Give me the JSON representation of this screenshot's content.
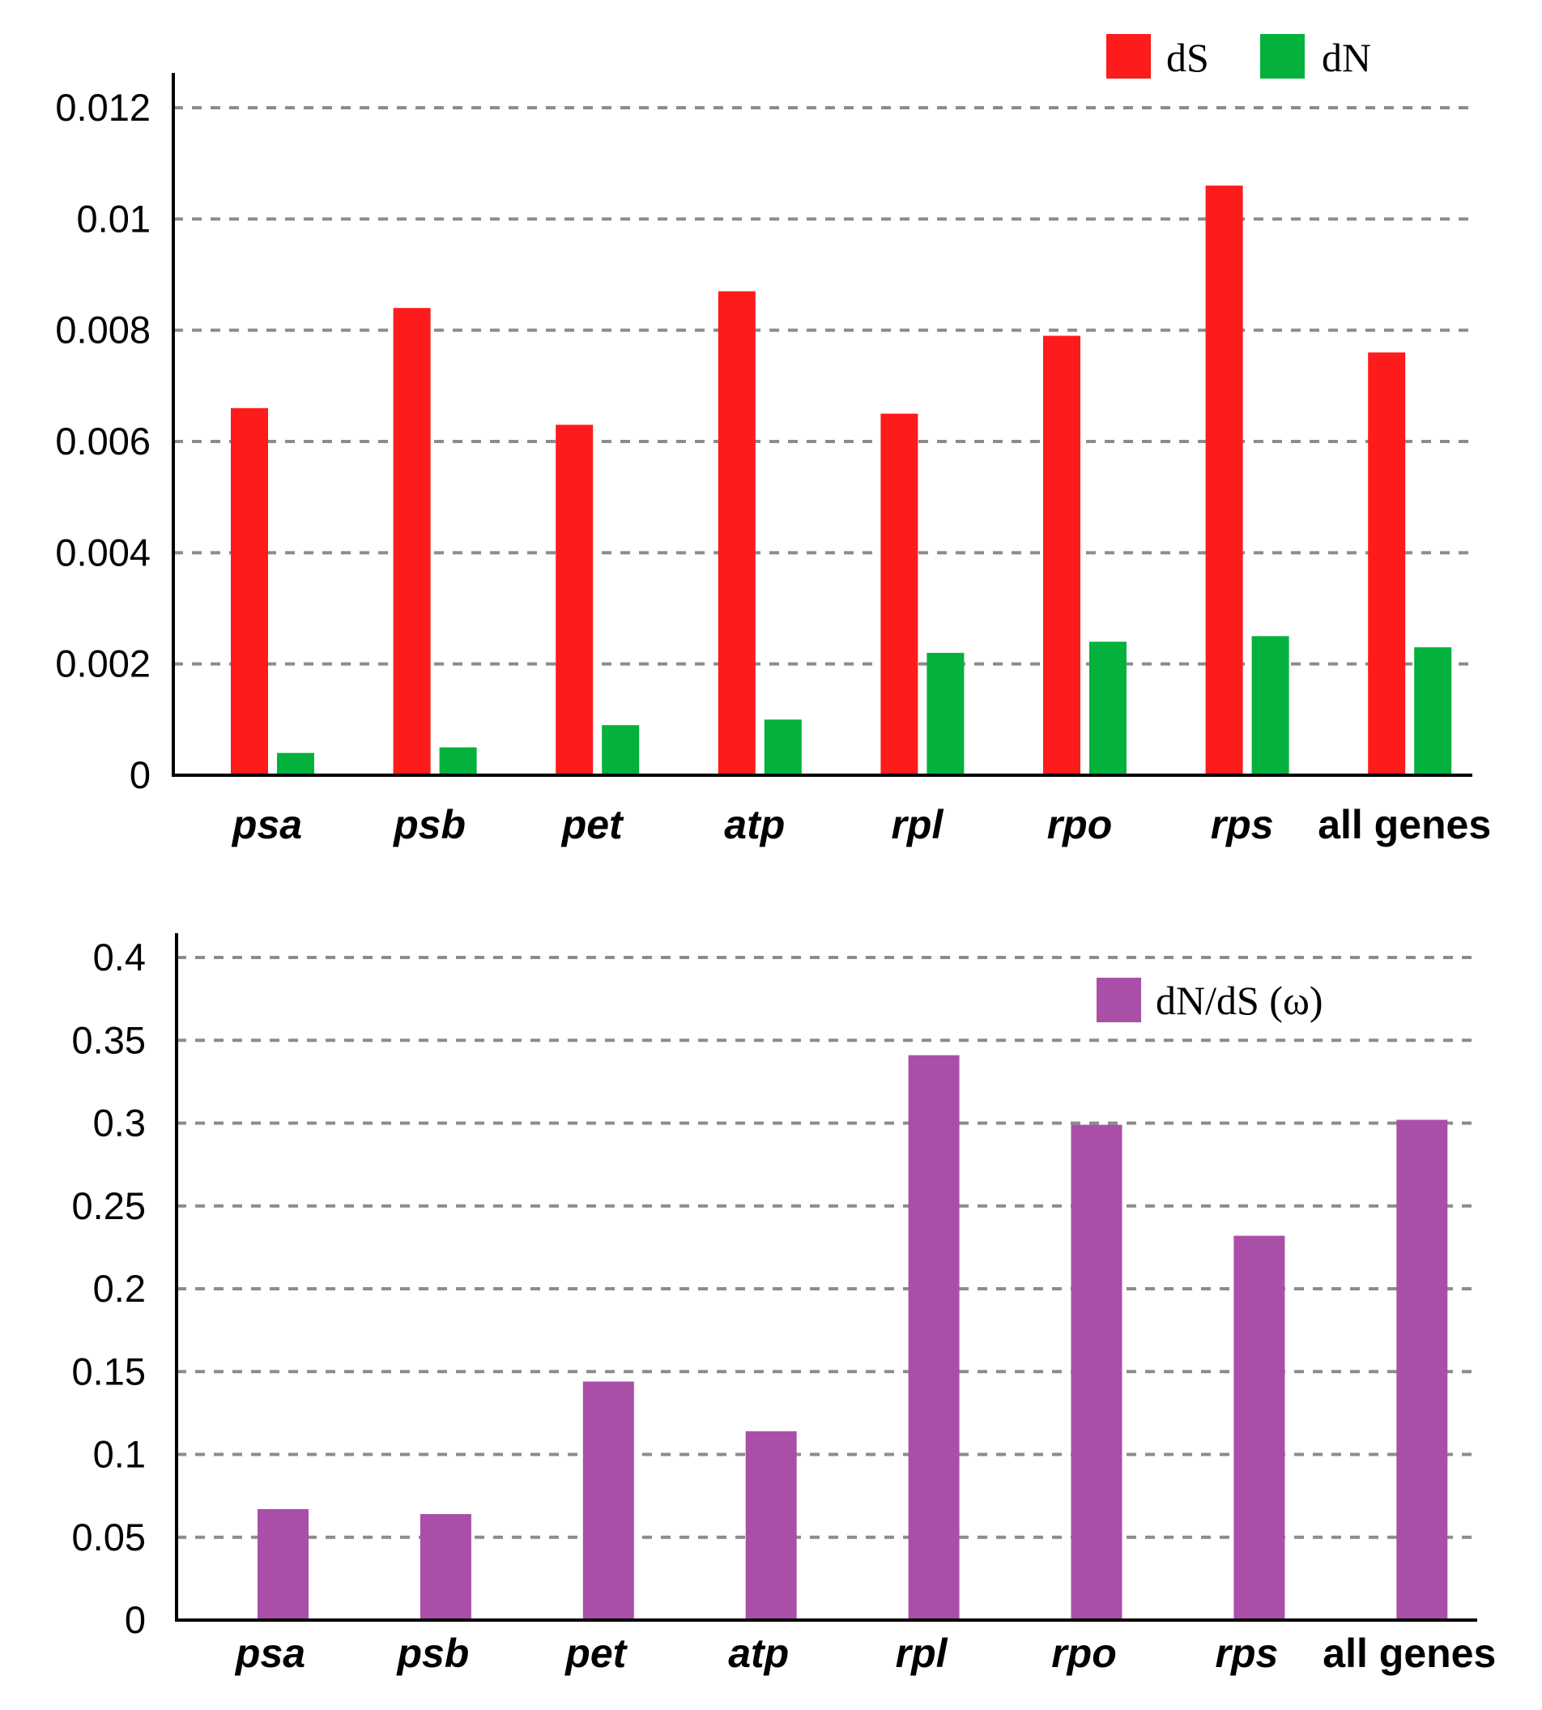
{
  "chart_data": [
    {
      "type": "bar",
      "categories": [
        "psa",
        "psb",
        "pet",
        "atp",
        "rpl",
        "rpo",
        "rps",
        "all genes"
      ],
      "category_italic": [
        true,
        true,
        true,
        true,
        true,
        true,
        true,
        false
      ],
      "series": [
        {
          "name": "dS",
          "color": "#fe1b1b",
          "values": [
            0.0066,
            0.0084,
            0.0063,
            0.0087,
            0.0065,
            0.0079,
            0.0106,
            0.0076
          ]
        },
        {
          "name": "dN",
          "color": "#04b13d",
          "values": [
            0.0004,
            0.0005,
            0.0009,
            0.001,
            0.0022,
            0.0024,
            0.0025,
            0.0023
          ]
        }
      ],
      "ylim": [
        0,
        0.012
      ],
      "yticks": [
        0,
        0.002,
        0.004,
        0.006,
        0.008,
        0.01,
        0.012
      ],
      "ytick_labels": [
        "0",
        "0.002",
        "0.004",
        "0.006",
        "0.008",
        "0.01",
        "0.012"
      ],
      "title": "",
      "xlabel": "",
      "ylabel": "",
      "grid": true,
      "legend": "top-right"
    },
    {
      "type": "bar",
      "categories": [
        "psa",
        "psb",
        "pet",
        "atp",
        "rpl",
        "rpo",
        "rps",
        "all genes"
      ],
      "category_italic": [
        true,
        true,
        true,
        true,
        true,
        true,
        true,
        false
      ],
      "series": [
        {
          "name": "dN/dS (ω)",
          "color": "#aa4fa8",
          "values": [
            0.067,
            0.064,
            0.144,
            0.114,
            0.341,
            0.299,
            0.232,
            0.302
          ]
        }
      ],
      "ylim": [
        0,
        0.4
      ],
      "yticks": [
        0,
        0.05,
        0.1,
        0.15,
        0.2,
        0.25,
        0.3,
        0.35,
        0.4
      ],
      "ytick_labels": [
        "0",
        "0.05",
        "0.1",
        "0.15",
        "0.2",
        "0.25",
        "0.3",
        "0.35",
        "0.4"
      ],
      "title": "",
      "xlabel": "",
      "ylabel": "",
      "grid": true,
      "legend": "top-right"
    }
  ]
}
